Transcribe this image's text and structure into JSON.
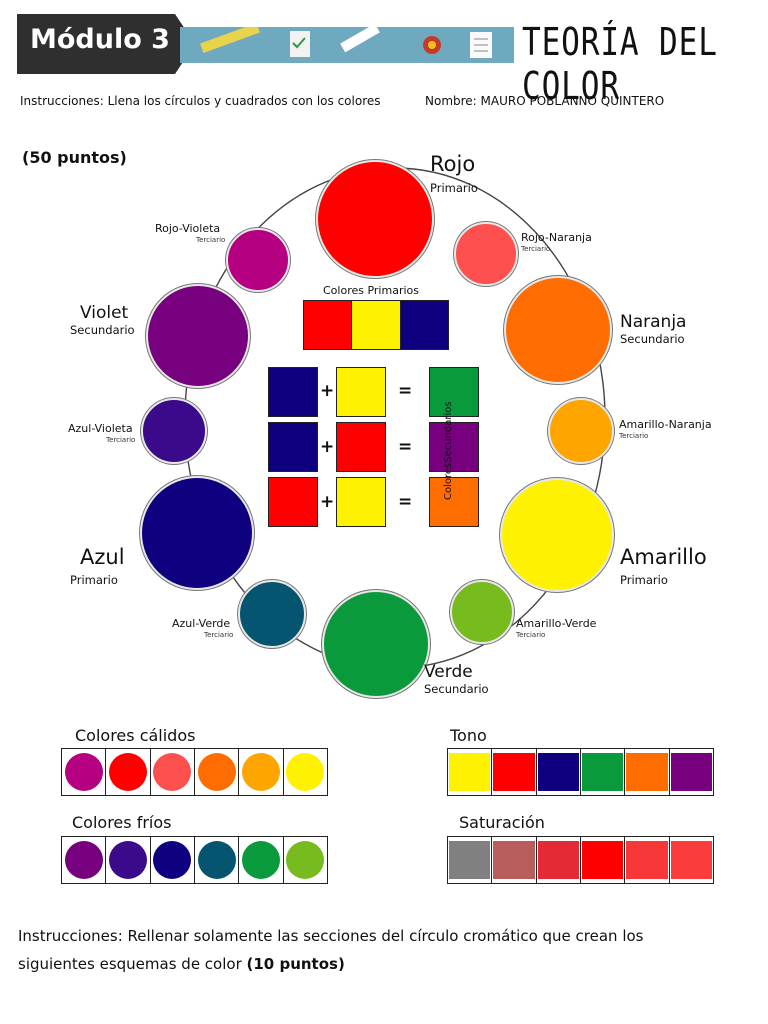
{
  "header": {
    "module": "Módulo 3",
    "topic": "TEORÍA DEL COLOR"
  },
  "instructions_line": "Instrucciones: Llena los círculos y cuadrados con los colores",
  "name_line": "Nombre: MAURO POBLANNO QUINTERO",
  "points_top": "(50 puntos)",
  "wheel": {
    "rojo": {
      "name": "Rojo",
      "kind": "Primario",
      "color": "#fe0000"
    },
    "rojo_naranja": {
      "name": "Rojo-Naranja",
      "kind": "Terciario",
      "color": "#ff5050"
    },
    "naranja": {
      "name": "Naranja",
      "kind": "Secundario",
      "color": "#ff6d00"
    },
    "amarillo_naranja": {
      "name": "Amarillo-Naranja",
      "kind": "Terciario",
      "color": "#ffa500"
    },
    "amarillo": {
      "name": "Amarillo",
      "kind": "Primario",
      "color": "#fff200"
    },
    "amarillo_verde": {
      "name": "Amarillo-Verde",
      "kind": "Terciario",
      "color": "#77bb1f"
    },
    "verde": {
      "name": "Verde",
      "kind": "Secundario",
      "color": "#0b9a3b"
    },
    "azul_verde": {
      "name": "Azul-Verde",
      "kind": "Terciario",
      "color": "#055570"
    },
    "azul": {
      "name": "Azul",
      "kind": "Primario",
      "color": "#0f0080"
    },
    "azul_violeta": {
      "name": "Azul-Violeta",
      "kind": "Terciario",
      "color": "#3a0a8a"
    },
    "violet": {
      "name": "Violet",
      "kind": "Secundario",
      "color": "#77007f"
    },
    "rojo_violeta": {
      "name": "Rojo-Violeta",
      "kind": "Terciario",
      "color": "#b50082"
    }
  },
  "primarios_label": "Colores Primarios",
  "secundarios_label": "ColoresSecundarios",
  "plus": "+",
  "equals": "=",
  "calidos_label": "Colores cálidos",
  "frios_label": "Colores fríos",
  "tono_label": "Tono",
  "saturacion_label": "Saturación",
  "bottom_instructions_prefix": "Instrucciones: Rellenar solamente las secciones del círculo cromático que crean los siguientes esquemas de color ",
  "bottom_points": "(10 puntos)"
}
